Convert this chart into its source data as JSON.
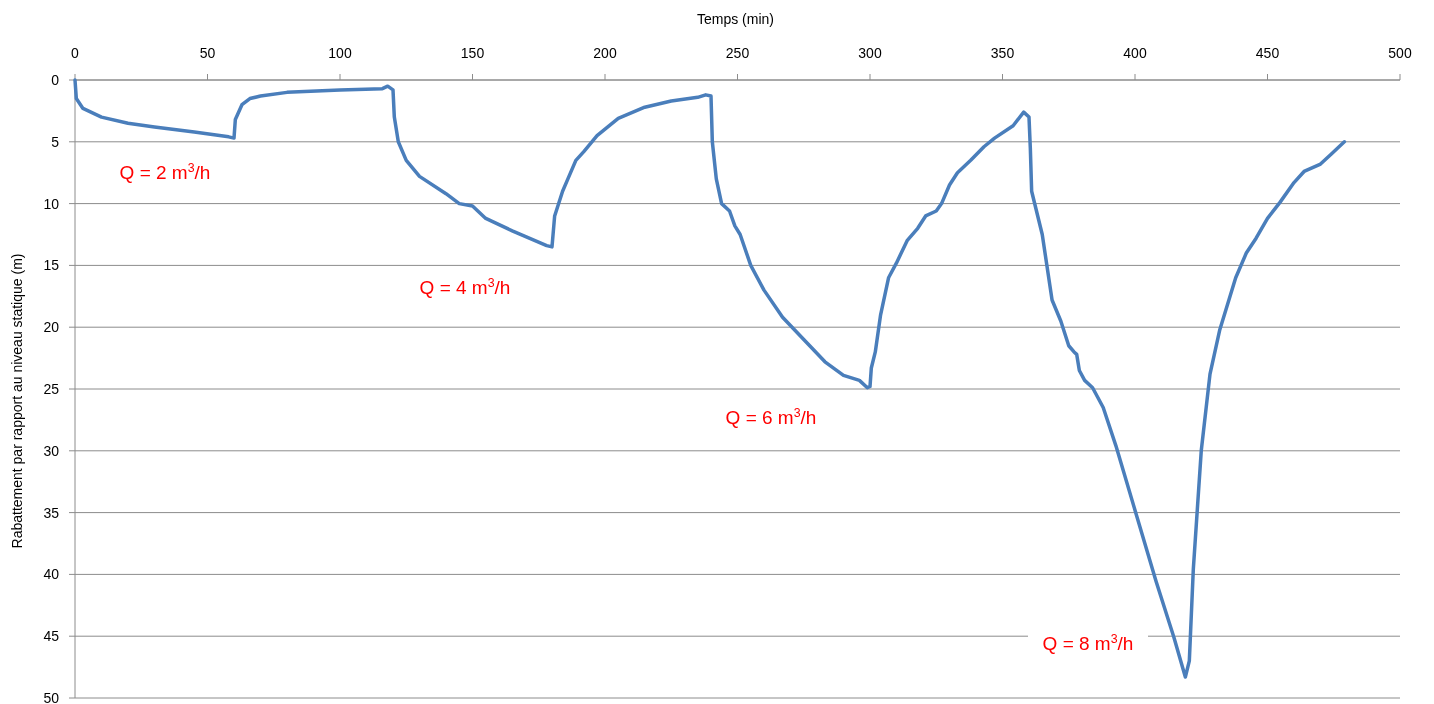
{
  "chart_data": {
    "type": "line",
    "xlabel": "Temps (min)",
    "ylabel": "Rabattement par rapport au niveau statique (m)",
    "xlim": [
      0,
      500
    ],
    "xticks": [
      0,
      50,
      100,
      150,
      200,
      250,
      300,
      350,
      400,
      450,
      500
    ],
    "ylim": [
      50,
      0
    ],
    "yticks": [
      0,
      5,
      10,
      15,
      20,
      25,
      30,
      35,
      40,
      45,
      50
    ],
    "grid": "y",
    "marker": "none",
    "line_style": "solid",
    "series": [
      {
        "color": "#4a7ebb",
        "x": [
          0,
          0.5,
          3,
          10,
          20,
          30,
          45,
          58,
          60,
          60.5,
          63,
          66,
          70,
          80,
          100,
          116,
          118,
          120,
          120.5,
          122,
          125,
          130,
          140,
          145,
          150,
          155,
          165,
          178,
          180,
          181,
          184,
          186,
          189,
          192,
          197,
          205,
          215,
          225,
          235,
          238,
          240,
          240.5,
          242,
          244,
          247,
          249,
          251,
          255,
          260,
          267,
          275,
          283,
          290,
          296,
          299,
          300,
          300.5,
          302,
          304,
          307,
          310,
          314,
          318,
          321,
          325,
          327,
          330,
          333,
          338,
          343,
          347,
          354,
          358,
          360,
          360.5,
          361,
          365,
          368.7,
          372,
          375,
          377,
          378,
          379,
          381,
          384,
          388,
          392.8,
          400,
          408,
          414.7,
          419,
          420.5,
          422,
          425,
          428.3,
          432,
          438,
          442,
          445.7,
          450,
          454.7,
          460,
          463.8,
          470,
          474,
          479
        ],
        "values": [
          0,
          1.5,
          2.3,
          3.0,
          3.5,
          3.8,
          4.2,
          4.6,
          4.7,
          3.2,
          2,
          1.5,
          1.3,
          1.0,
          0.8,
          0.7,
          0.5,
          0.8,
          3,
          5,
          6.5,
          7.8,
          9.2,
          10,
          10.2,
          11.2,
          12.2,
          13.4,
          13.5,
          11,
          9,
          8,
          6.5,
          5.8,
          4.5,
          3.1,
          2.2,
          1.7,
          1.4,
          1.2,
          1.3,
          5,
          8,
          10,
          10.6,
          11.8,
          12.5,
          15,
          17,
          19.2,
          21,
          22.8,
          23.9,
          24.3,
          24.9,
          24.8,
          23.3,
          22,
          19,
          16,
          14.8,
          13,
          12,
          11,
          10.6,
          10,
          8.5,
          7.5,
          6.5,
          5.4,
          4.7,
          3.7,
          2.6,
          3,
          5.5,
          9,
          12.5,
          17.8,
          19.5,
          21.5,
          22,
          22.2,
          23.5,
          24.3,
          24.9,
          26.5,
          29.6,
          34.8,
          40.6,
          45.1,
          48.3,
          47,
          39.6,
          30,
          23.8,
          20.2,
          16,
          14,
          12.8,
          11.2,
          9.9,
          8.3,
          7.4,
          6.8,
          6,
          5.0
        ]
      }
    ],
    "annotations": [
      "Q = 2 m$^{3}$/h",
      "Q = 4 m$^{3}$/h",
      "Q = 6 m$^{3}$/h",
      "Q = 8 m$^{3}$/h"
    ]
  }
}
